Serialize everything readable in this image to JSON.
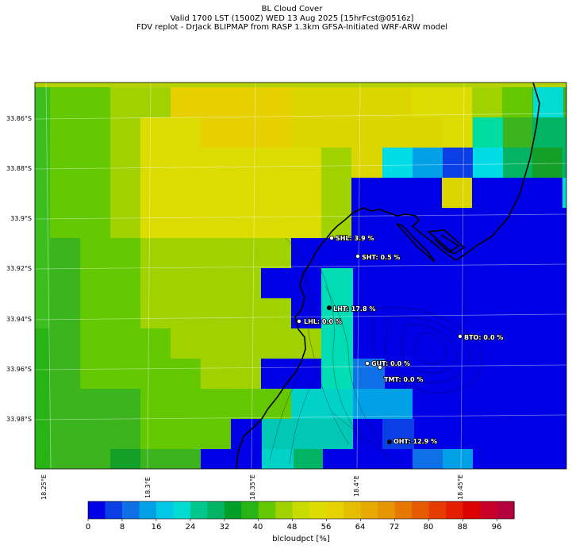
{
  "title": {
    "line1": "BL Cloud Cover",
    "line2": "Valid 1700 LST (1500Z) WED 13 Aug 2025 [15hrFcst@0516z]",
    "line3": "FDV replot - DrJack BLIPMAP from RASP 1.3km GFSA-Initiated WRF-ARW model"
  },
  "lat_ticks": [
    "33.86°S",
    "33.88°S",
    "33.9°S",
    "33.92°S",
    "33.94°S",
    "33.96°S",
    "33.98°S"
  ],
  "lon_ticks": [
    "18.25°E",
    "18.3°E",
    "18.35°E",
    "18.4°E",
    "18.45°E"
  ],
  "stations": [
    {
      "label": "SHL: 3.9 %"
    },
    {
      "label": "SHT: 0.5 %"
    },
    {
      "label": "LHT: 17.8 %"
    },
    {
      "label": "LHL: 0.0 %"
    },
    {
      "label": "BTO: 0.0 %"
    },
    {
      "label": "GUT: 0.0 %"
    },
    {
      "label": "TMT: 0.0 %"
    },
    {
      "label": "OHT: 12.9 %"
    }
  ],
  "colorbar": {
    "ticks": [
      "0",
      "8",
      "16",
      "24",
      "32",
      "40",
      "48",
      "56",
      "64",
      "72",
      "80",
      "88",
      "96"
    ],
    "label": "blcloudpct [%]",
    "colors": [
      "#0000e6",
      "#0a3fe6",
      "#0f6fe6",
      "#00a0e6",
      "#00c8e6",
      "#00dcd2",
      "#00c88c",
      "#00b464",
      "#00a028",
      "#28b414",
      "#64c800",
      "#a0d200",
      "#c8dc00",
      "#dcdc00",
      "#e6d200",
      "#e6be00",
      "#e6aa00",
      "#e69600",
      "#e67800",
      "#e65a00",
      "#e63c00",
      "#e61e00",
      "#dc0000",
      "#c80028",
      "#b4003c"
    ]
  },
  "field_grid": [
    "6BBEEHHHHGGGGFFEDCC000000000SS",
    "6BBEFFHHHGGGGGFEA88100000000",
    "6BBEFFFFFFEGGGGA8980000000000",
    "6BBEFFFFFFE000G000S0000000000",
    "6BBEFFFFFFE000000000000000000",
    "6ABBEEEEE00000000000000000000",
    "6ABBEEEE0000000000000000000000",
    "6ABBEEEEE000000000000000000000",
    "5ABBBEEEEE00000000000000000000",
    "5ABBBBEE000000000000000000000",
    "5AAABBBBB0000000000000000000",
    "5AAABBB00000000000000000000000",
    "5AA9AA000000000000000000000000",
    "5AA9AA000000000000000000000000",
    "5AA99000000000000000000000000"
  ]
}
